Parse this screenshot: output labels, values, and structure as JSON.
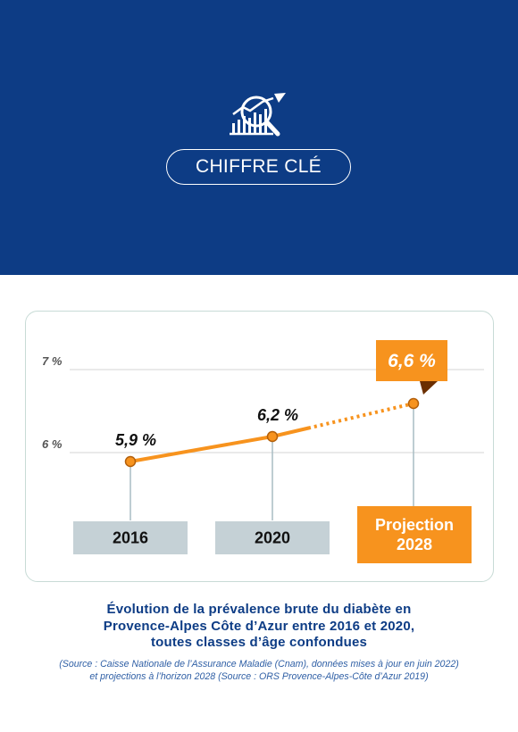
{
  "header": {
    "badge_label": "CHIFFRE CLÉ",
    "icon_name": "chart-magnifier-icon",
    "background_color": "#0d3c85"
  },
  "chart_data": {
    "type": "line",
    "x": [
      "2016",
      "2020",
      "Projection 2028"
    ],
    "values": [
      5.9,
      6.2,
      6.6
    ],
    "value_labels": [
      "5,9 %",
      "6,2 %",
      "6,6 %"
    ],
    "projected": [
      false,
      false,
      true
    ],
    "yticks": [
      6,
      7
    ],
    "ytick_labels": [
      "6 %",
      "7 %"
    ],
    "ylim": [
      5.4,
      7.0
    ],
    "grid": true,
    "category_labels": [
      [
        "2016"
      ],
      [
        "2020"
      ],
      [
        "Projection",
        "2028"
      ]
    ],
    "colors": {
      "line": "#f7931e",
      "marker_fill": "#f7931e",
      "marker_stroke": "#b35f0a",
      "category_box": "#c5d1d6",
      "highlight_box": "#f7931e",
      "grid": "#d5d5d5",
      "stem": "#a9bcc3"
    }
  },
  "caption": {
    "lines": [
      "Évolution de la prévalence brute du diabète en",
      "Provence-Alpes Côte d’Azur entre 2016 et 2020,",
      "toutes classes d’âge confondues"
    ]
  },
  "source": {
    "lines": [
      "(Source : Caisse Nationale de l’Assurance Maladie (Cnam), données mises à jour en juin 2022)",
      "et projections à l’horizon 2028 (Source : ORS Provence-Alpes-Côte d’Azur 2019)"
    ]
  }
}
